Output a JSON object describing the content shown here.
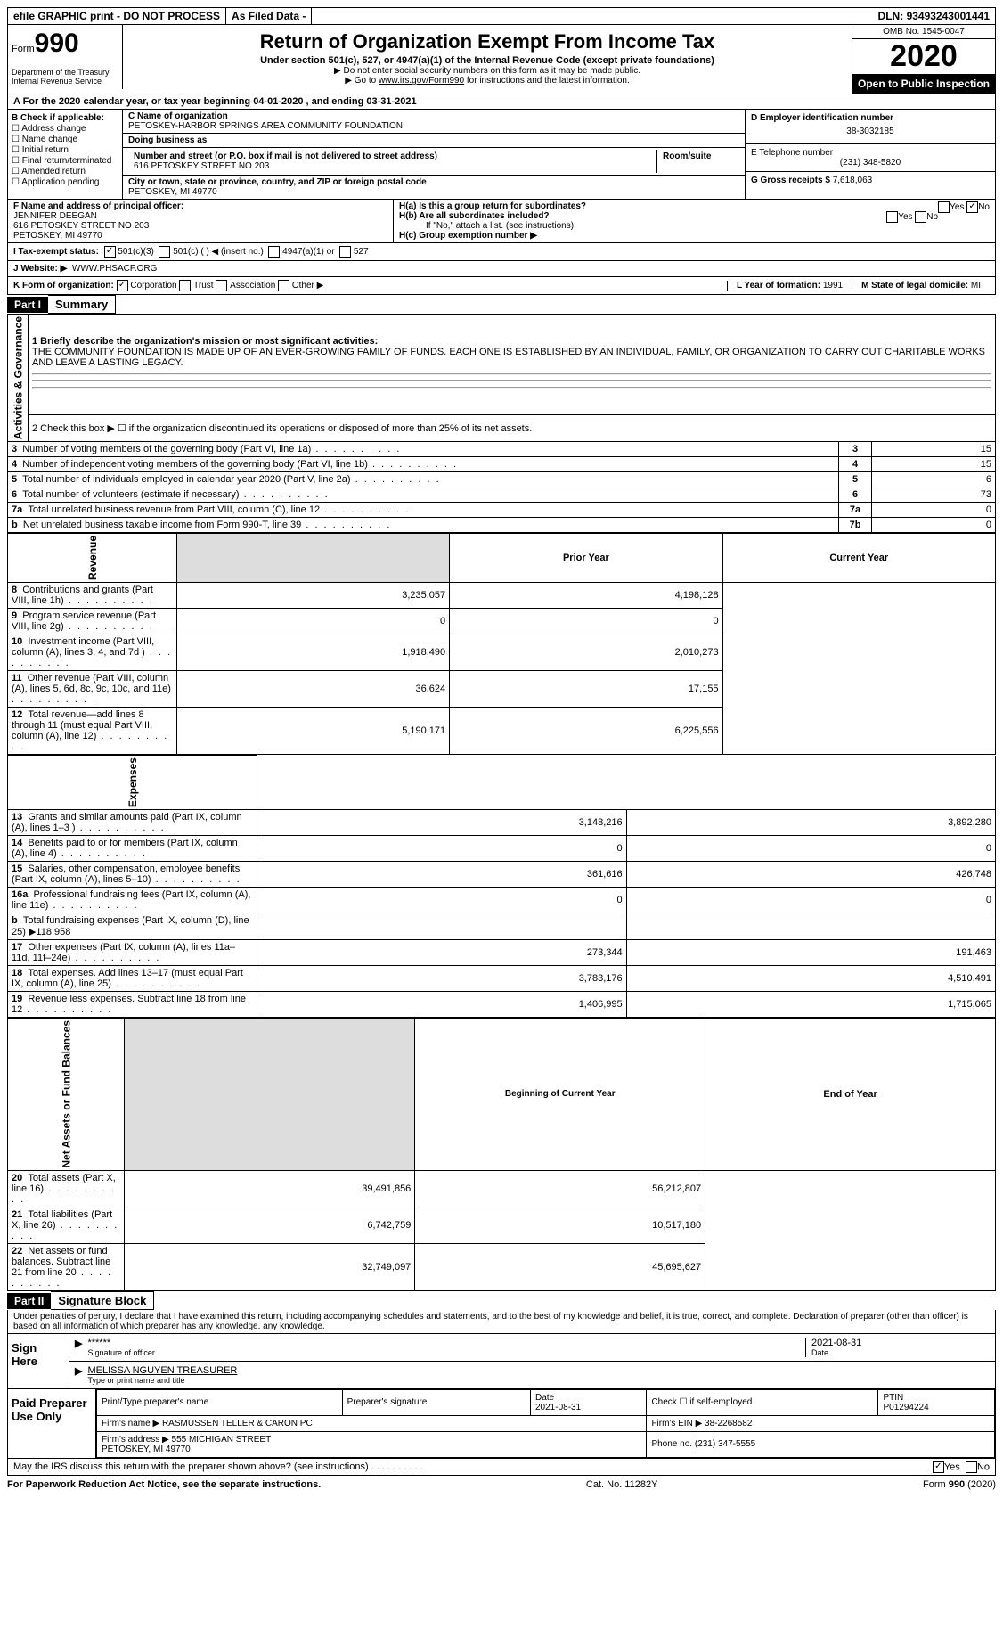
{
  "topbar": {
    "efile": "efile GRAPHIC print - DO NOT PROCESS",
    "asfiled": "As Filed Data -",
    "dln_label": "DLN:",
    "dln": "93493243001441"
  },
  "header": {
    "form_label": "Form",
    "form_num": "990",
    "dept": "Department of the Treasury\nInternal Revenue Service",
    "title": "Return of Organization Exempt From Income Tax",
    "sub": "Under section 501(c), 527, or 4947(a)(1) of the Internal Revenue Code (except private foundations)",
    "line1": "▶ Do not enter social security numbers on this form as it may be made public.",
    "line2_pre": "▶ Go to ",
    "line2_link": "www.irs.gov/Form990",
    "line2_post": " for instructions and the latest information.",
    "omb": "OMB No. 1545-0047",
    "year": "2020",
    "open": "Open to Public Inspection"
  },
  "rowA": "A   For the 2020 calendar year, or tax year beginning 04-01-2020  , and ending 03-31-2021",
  "b": {
    "hdr": "B Check if applicable:",
    "items": [
      "Address change",
      "Name change",
      "Initial return",
      "Final return/terminated",
      "Amended return",
      "Application pending"
    ]
  },
  "c": {
    "name_lbl": "C Name of organization",
    "name": "PETOSKEY-HARBOR SPRINGS AREA COMMUNITY FOUNDATION",
    "dba_lbl": "Doing business as",
    "addr_lbl": "Number and street (or P.O. box if mail is not delivered to street address)",
    "room_lbl": "Room/suite",
    "addr": "616 PETOSKEY STREET NO 203",
    "city_lbl": "City or town, state or province, country, and ZIP or foreign postal code",
    "city": "PETOSKEY, MI  49770"
  },
  "d": {
    "lbl": "D Employer identification number",
    "val": "38-3032185"
  },
  "e": {
    "lbl": "E Telephone number",
    "val": "(231) 348-5820"
  },
  "g": {
    "lbl": "G Gross receipts $",
    "val": "7,618,063"
  },
  "f": {
    "lbl": "F  Name and address of principal officer:",
    "name": "JENNIFER DEEGAN",
    "addr1": "616 PETOSKEY STREET NO 203",
    "addr2": "PETOSKEY, MI  49770"
  },
  "h": {
    "a": "H(a)  Is this a group return for subordinates?",
    "b": "H(b)  Are all subordinates included?",
    "bnote": "If \"No,\" attach a list. (see instructions)",
    "c": "H(c)  Group exemption number ▶",
    "yes": "Yes",
    "no": "No"
  },
  "i": {
    "lbl": "I   Tax-exempt status:",
    "o1": "501(c)(3)",
    "o2": "501(c) (    ) ◀ (insert no.)",
    "o3": "4947(a)(1) or",
    "o4": "527"
  },
  "j": {
    "lbl": "J   Website: ▶",
    "val": "WWW.PHSACF.ORG"
  },
  "k": {
    "lbl": "K Form of organization:",
    "corp": "Corporation",
    "trust": "Trust",
    "assoc": "Association",
    "other": "Other ▶"
  },
  "l": {
    "lbl": "L Year of formation:",
    "val": "1991"
  },
  "m": {
    "lbl": "M State of legal domicile:",
    "val": "MI"
  },
  "part1": {
    "num": "Part I",
    "title": "Summary"
  },
  "mission_lbl": "1 Briefly describe the organization's mission or most significant activities:",
  "mission": "THE COMMUNITY FOUNDATION IS MADE UP OF AN EVER-GROWING FAMILY OF FUNDS. EACH ONE IS ESTABLISHED BY AN INDIVIDUAL, FAMILY, OR ORGANIZATION TO CARRY OUT CHARITABLE WORKS AND LEAVE A LASTING LEGACY.",
  "line2": "2   Check this box ▶ ☐ if the organization discontinued its operations or disposed of more than 25% of its net assets.",
  "gov_rows": [
    {
      "n": "3",
      "d": "Number of voting members of the governing body (Part VI, line 1a)",
      "k": "3",
      "v": "15"
    },
    {
      "n": "4",
      "d": "Number of independent voting members of the governing body (Part VI, line 1b)",
      "k": "4",
      "v": "15"
    },
    {
      "n": "5",
      "d": "Total number of individuals employed in calendar year 2020 (Part V, line 2a)",
      "k": "5",
      "v": "6"
    },
    {
      "n": "6",
      "d": "Total number of volunteers (estimate if necessary)",
      "k": "6",
      "v": "73"
    },
    {
      "n": "7a",
      "d": "Total unrelated business revenue from Part VIII, column (C), line 12",
      "k": "7a",
      "v": "0"
    },
    {
      "n": "b",
      "d": "Net unrelated business taxable income from Form 990-T, line 39",
      "k": "7b",
      "v": "0"
    }
  ],
  "py_hdr": "Prior Year",
  "cy_hdr": "Current Year",
  "rev_rows": [
    {
      "n": "8",
      "d": "Contributions and grants (Part VIII, line 1h)",
      "py": "3,235,057",
      "cy": "4,198,128"
    },
    {
      "n": "9",
      "d": "Program service revenue (Part VIII, line 2g)",
      "py": "0",
      "cy": "0"
    },
    {
      "n": "10",
      "d": "Investment income (Part VIII, column (A), lines 3, 4, and 7d )",
      "py": "1,918,490",
      "cy": "2,010,273"
    },
    {
      "n": "11",
      "d": "Other revenue (Part VIII, column (A), lines 5, 6d, 8c, 9c, 10c, and 11e)",
      "py": "36,624",
      "cy": "17,155"
    },
    {
      "n": "12",
      "d": "Total revenue—add lines 8 through 11 (must equal Part VIII, column (A), line 12)",
      "py": "5,190,171",
      "cy": "6,225,556"
    }
  ],
  "exp_rows": [
    {
      "n": "13",
      "d": "Grants and similar amounts paid (Part IX, column (A), lines 1–3 )",
      "py": "3,148,216",
      "cy": "3,892,280"
    },
    {
      "n": "14",
      "d": "Benefits paid to or for members (Part IX, column (A), line 4)",
      "py": "0",
      "cy": "0"
    },
    {
      "n": "15",
      "d": "Salaries, other compensation, employee benefits (Part IX, column (A), lines 5–10)",
      "py": "361,616",
      "cy": "426,748"
    },
    {
      "n": "16a",
      "d": "Professional fundraising fees (Part IX, column (A), line 11e)",
      "py": "0",
      "cy": "0"
    },
    {
      "n": "b",
      "d": "Total fundraising expenses (Part IX, column (D), line 25) ▶118,958",
      "py": "",
      "cy": "",
      "grey": true
    },
    {
      "n": "17",
      "d": "Other expenses (Part IX, column (A), lines 11a–11d, 11f–24e)",
      "py": "273,344",
      "cy": "191,463"
    },
    {
      "n": "18",
      "d": "Total expenses. Add lines 13–17 (must equal Part IX, column (A), line 25)",
      "py": "3,783,176",
      "cy": "4,510,491"
    },
    {
      "n": "19",
      "d": "Revenue less expenses. Subtract line 18 from line 12",
      "py": "1,406,995",
      "cy": "1,715,065"
    }
  ],
  "na_hdr1": "Beginning of Current Year",
  "na_hdr2": "End of Year",
  "na_rows": [
    {
      "n": "20",
      "d": "Total assets (Part X, line 16)",
      "py": "39,491,856",
      "cy": "56,212,807"
    },
    {
      "n": "21",
      "d": "Total liabilities (Part X, line 26)",
      "py": "6,742,759",
      "cy": "10,517,180"
    },
    {
      "n": "22",
      "d": "Net assets or fund balances. Subtract line 21 from line 20",
      "py": "32,749,097",
      "cy": "45,695,627"
    }
  ],
  "vheaders": {
    "gov": "Activities & Governance",
    "rev": "Revenue",
    "exp": "Expenses",
    "na": "Net Assets or Fund Balances"
  },
  "part2": {
    "num": "Part II",
    "title": "Signature Block"
  },
  "perjury": "Under penalties of perjury, I declare that I have examined this return, including accompanying schedules and statements, and to the best of my knowledge and belief, it is true, correct, and complete. Declaration of preparer (other than officer) is based on all information of which preparer has any knowledge.",
  "sign": {
    "here": "Sign Here",
    "stars": "******",
    "sig_lbl": "Signature of officer",
    "date": "2021-08-31",
    "date_lbl": "Date",
    "name": "MELISSA NGUYEN  TREASURER",
    "name_lbl": "Type or print name and title"
  },
  "prep": {
    "lbl": "Paid Preparer Use Only",
    "c1": "Print/Type preparer's name",
    "c2": "Preparer's signature",
    "c3": "Date",
    "date": "2021-08-31",
    "c4": "Check ☐ if self-employed",
    "c5": "PTIN",
    "ptin": "P01294224",
    "firm_lbl": "Firm's name    ▶",
    "firm": "RASMUSSEN TELLER & CARON PC",
    "ein_lbl": "Firm's EIN ▶",
    "ein": "38-2268582",
    "addr_lbl": "Firm's address ▶",
    "addr": "555 MICHIGAN STREET\nPETOSKEY, MI  49770",
    "phone_lbl": "Phone no.",
    "phone": "(231) 347-5555"
  },
  "discuss": "May the IRS discuss this return with the preparer shown above? (see instructions)",
  "footer": {
    "l": "For Paperwork Reduction Act Notice, see the separate instructions.",
    "m": "Cat. No. 11282Y",
    "r": "Form 990 (2020)"
  }
}
